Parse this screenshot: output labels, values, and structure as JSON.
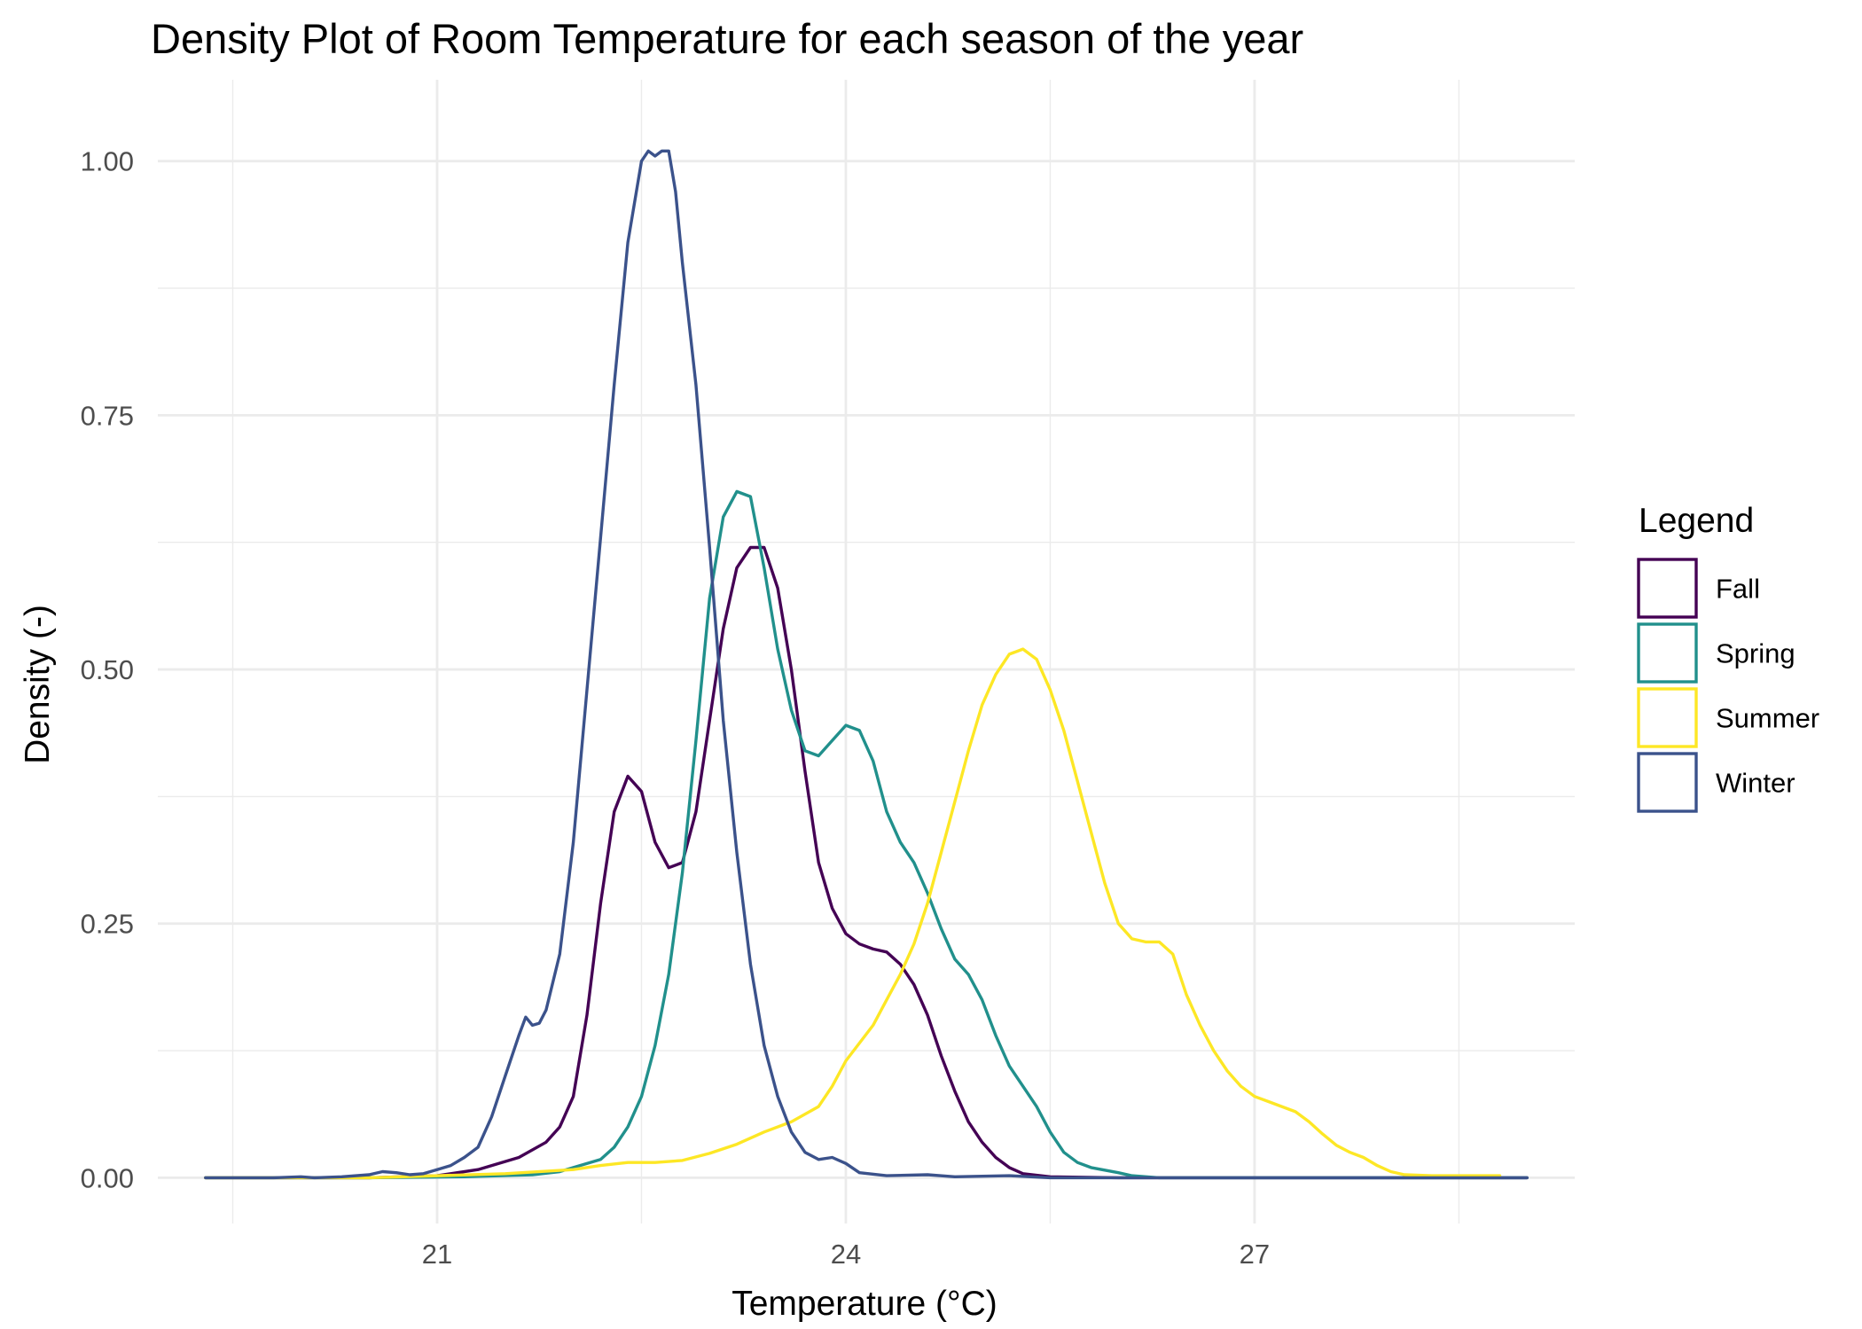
{
  "chart_data": {
    "type": "line",
    "title": "Density Plot of Room Temperature for each season of the year",
    "xlabel": "Temperature (°C)",
    "ylabel": "Density (-)",
    "xlim": [
      18.95,
      29.35
    ],
    "ylim": [
      -0.045,
      1.08
    ],
    "x_ticks": [
      21,
      24,
      27
    ],
    "x_tick_labels": [
      "21",
      "24",
      "27"
    ],
    "x_minor_grid": [
      19.5,
      22.5,
      25.5,
      28.5
    ],
    "y_ticks": [
      0,
      0.25,
      0.5,
      0.75,
      1.0
    ],
    "y_tick_labels": [
      "0.00",
      "0.25",
      "0.50",
      "0.75",
      "1.00"
    ],
    "y_minor_grid": [
      0.125,
      0.375,
      0.625,
      0.875
    ],
    "grid": true,
    "legend": {
      "title": "Legend",
      "position": "right",
      "entries": [
        "Fall",
        "Spring",
        "Summer",
        "Winter"
      ]
    },
    "series": [
      {
        "name": "Fall",
        "color": "#440154",
        "points": [
          [
            19.3,
            0.0
          ],
          [
            20.0,
            0.0
          ],
          [
            20.5,
            0.0
          ],
          [
            21.0,
            0.002
          ],
          [
            21.3,
            0.008
          ],
          [
            21.6,
            0.02
          ],
          [
            21.8,
            0.035
          ],
          [
            21.9,
            0.05
          ],
          [
            22.0,
            0.08
          ],
          [
            22.1,
            0.16
          ],
          [
            22.2,
            0.27
          ],
          [
            22.3,
            0.36
          ],
          [
            22.4,
            0.395
          ],
          [
            22.5,
            0.38
          ],
          [
            22.6,
            0.33
          ],
          [
            22.7,
            0.305
          ],
          [
            22.8,
            0.31
          ],
          [
            22.9,
            0.36
          ],
          [
            23.0,
            0.45
          ],
          [
            23.1,
            0.54
          ],
          [
            23.2,
            0.6
          ],
          [
            23.3,
            0.62
          ],
          [
            23.4,
            0.62
          ],
          [
            23.5,
            0.58
          ],
          [
            23.6,
            0.5
          ],
          [
            23.7,
            0.4
          ],
          [
            23.8,
            0.31
          ],
          [
            23.9,
            0.265
          ],
          [
            24.0,
            0.24
          ],
          [
            24.1,
            0.23
          ],
          [
            24.2,
            0.225
          ],
          [
            24.3,
            0.222
          ],
          [
            24.4,
            0.21
          ],
          [
            24.5,
            0.19
          ],
          [
            24.6,
            0.16
          ],
          [
            24.7,
            0.12
          ],
          [
            24.8,
            0.085
          ],
          [
            24.9,
            0.055
          ],
          [
            25.0,
            0.035
          ],
          [
            25.1,
            0.02
          ],
          [
            25.2,
            0.01
          ],
          [
            25.3,
            0.004
          ],
          [
            25.5,
            0.001
          ],
          [
            26.0,
            0.0
          ],
          [
            29.0,
            0.0
          ]
        ]
      },
      {
        "name": "Spring",
        "color": "#21908C",
        "points": [
          [
            19.3,
            0.0
          ],
          [
            20.5,
            0.0
          ],
          [
            21.2,
            0.001
          ],
          [
            21.7,
            0.003
          ],
          [
            21.9,
            0.006
          ],
          [
            22.0,
            0.01
          ],
          [
            22.2,
            0.018
          ],
          [
            22.3,
            0.03
          ],
          [
            22.4,
            0.05
          ],
          [
            22.5,
            0.08
          ],
          [
            22.6,
            0.13
          ],
          [
            22.7,
            0.2
          ],
          [
            22.8,
            0.3
          ],
          [
            22.9,
            0.43
          ],
          [
            23.0,
            0.57
          ],
          [
            23.1,
            0.65
          ],
          [
            23.2,
            0.675
          ],
          [
            23.3,
            0.67
          ],
          [
            23.4,
            0.6
          ],
          [
            23.5,
            0.52
          ],
          [
            23.6,
            0.46
          ],
          [
            23.7,
            0.42
          ],
          [
            23.8,
            0.415
          ],
          [
            23.9,
            0.43
          ],
          [
            24.0,
            0.445
          ],
          [
            24.1,
            0.44
          ],
          [
            24.2,
            0.41
          ],
          [
            24.3,
            0.36
          ],
          [
            24.4,
            0.33
          ],
          [
            24.5,
            0.31
          ],
          [
            24.6,
            0.28
          ],
          [
            24.7,
            0.245
          ],
          [
            24.8,
            0.215
          ],
          [
            24.9,
            0.2
          ],
          [
            25.0,
            0.175
          ],
          [
            25.1,
            0.14
          ],
          [
            25.2,
            0.11
          ],
          [
            25.3,
            0.09
          ],
          [
            25.4,
            0.07
          ],
          [
            25.5,
            0.045
          ],
          [
            25.6,
            0.025
          ],
          [
            25.7,
            0.015
          ],
          [
            25.8,
            0.01
          ],
          [
            26.0,
            0.005
          ],
          [
            26.1,
            0.002
          ],
          [
            26.3,
            0.0
          ],
          [
            29.0,
            0.0
          ]
        ]
      },
      {
        "name": "Summer",
        "color": "#FDE725",
        "points": [
          [
            19.3,
            0.0
          ],
          [
            20.5,
            0.0
          ],
          [
            21.5,
            0.004
          ],
          [
            22.0,
            0.008
          ],
          [
            22.2,
            0.012
          ],
          [
            22.4,
            0.015
          ],
          [
            22.6,
            0.015
          ],
          [
            22.8,
            0.017
          ],
          [
            23.0,
            0.024
          ],
          [
            23.2,
            0.033
          ],
          [
            23.4,
            0.045
          ],
          [
            23.6,
            0.055
          ],
          [
            23.8,
            0.07
          ],
          [
            23.9,
            0.09
          ],
          [
            24.0,
            0.115
          ],
          [
            24.2,
            0.15
          ],
          [
            24.3,
            0.175
          ],
          [
            24.4,
            0.2
          ],
          [
            24.5,
            0.23
          ],
          [
            24.6,
            0.27
          ],
          [
            24.7,
            0.32
          ],
          [
            24.8,
            0.37
          ],
          [
            24.9,
            0.42
          ],
          [
            25.0,
            0.465
          ],
          [
            25.1,
            0.495
          ],
          [
            25.2,
            0.515
          ],
          [
            25.3,
            0.52
          ],
          [
            25.4,
            0.51
          ],
          [
            25.5,
            0.48
          ],
          [
            25.6,
            0.44
          ],
          [
            25.7,
            0.39
          ],
          [
            25.8,
            0.34
          ],
          [
            25.9,
            0.29
          ],
          [
            26.0,
            0.25
          ],
          [
            26.1,
            0.235
          ],
          [
            26.2,
            0.232
          ],
          [
            26.3,
            0.232
          ],
          [
            26.4,
            0.22
          ],
          [
            26.5,
            0.18
          ],
          [
            26.6,
            0.15
          ],
          [
            26.7,
            0.125
          ],
          [
            26.8,
            0.105
          ],
          [
            26.9,
            0.09
          ],
          [
            27.0,
            0.08
          ],
          [
            27.1,
            0.075
          ],
          [
            27.2,
            0.07
          ],
          [
            27.3,
            0.065
          ],
          [
            27.4,
            0.055
          ],
          [
            27.5,
            0.043
          ],
          [
            27.6,
            0.032
          ],
          [
            27.7,
            0.025
          ],
          [
            27.8,
            0.02
          ],
          [
            27.9,
            0.012
          ],
          [
            28.0,
            0.006
          ],
          [
            28.1,
            0.003
          ],
          [
            28.3,
            0.002
          ],
          [
            28.8,
            0.002
          ]
        ]
      },
      {
        "name": "Winter",
        "color": "#3B528B",
        "points": [
          [
            19.3,
            0.0
          ],
          [
            19.5,
            0.0
          ],
          [
            19.8,
            0.0
          ],
          [
            20.0,
            0.001
          ],
          [
            20.1,
            0.0
          ],
          [
            20.3,
            0.001
          ],
          [
            20.5,
            0.003
          ],
          [
            20.6,
            0.006
          ],
          [
            20.7,
            0.005
          ],
          [
            20.8,
            0.003
          ],
          [
            20.9,
            0.004
          ],
          [
            21.0,
            0.008
          ],
          [
            21.1,
            0.012
          ],
          [
            21.2,
            0.02
          ],
          [
            21.3,
            0.03
          ],
          [
            21.4,
            0.06
          ],
          [
            21.5,
            0.1
          ],
          [
            21.6,
            0.14
          ],
          [
            21.65,
            0.158
          ],
          [
            21.7,
            0.15
          ],
          [
            21.75,
            0.152
          ],
          [
            21.8,
            0.165
          ],
          [
            21.9,
            0.22
          ],
          [
            22.0,
            0.33
          ],
          [
            22.1,
            0.48
          ],
          [
            22.2,
            0.63
          ],
          [
            22.3,
            0.78
          ],
          [
            22.4,
            0.92
          ],
          [
            22.5,
            1.0
          ],
          [
            22.55,
            1.01
          ],
          [
            22.6,
            1.005
          ],
          [
            22.65,
            1.01
          ],
          [
            22.7,
            1.01
          ],
          [
            22.75,
            0.97
          ],
          [
            22.8,
            0.9
          ],
          [
            22.9,
            0.78
          ],
          [
            23.0,
            0.62
          ],
          [
            23.1,
            0.45
          ],
          [
            23.2,
            0.32
          ],
          [
            23.3,
            0.21
          ],
          [
            23.4,
            0.13
          ],
          [
            23.5,
            0.08
          ],
          [
            23.6,
            0.045
          ],
          [
            23.7,
            0.025
          ],
          [
            23.8,
            0.018
          ],
          [
            23.9,
            0.02
          ],
          [
            24.0,
            0.014
          ],
          [
            24.1,
            0.005
          ],
          [
            24.3,
            0.002
          ],
          [
            24.6,
            0.003
          ],
          [
            24.8,
            0.001
          ],
          [
            25.2,
            0.002
          ],
          [
            25.5,
            0.0
          ],
          [
            29.0,
            0.0
          ]
        ]
      }
    ]
  }
}
